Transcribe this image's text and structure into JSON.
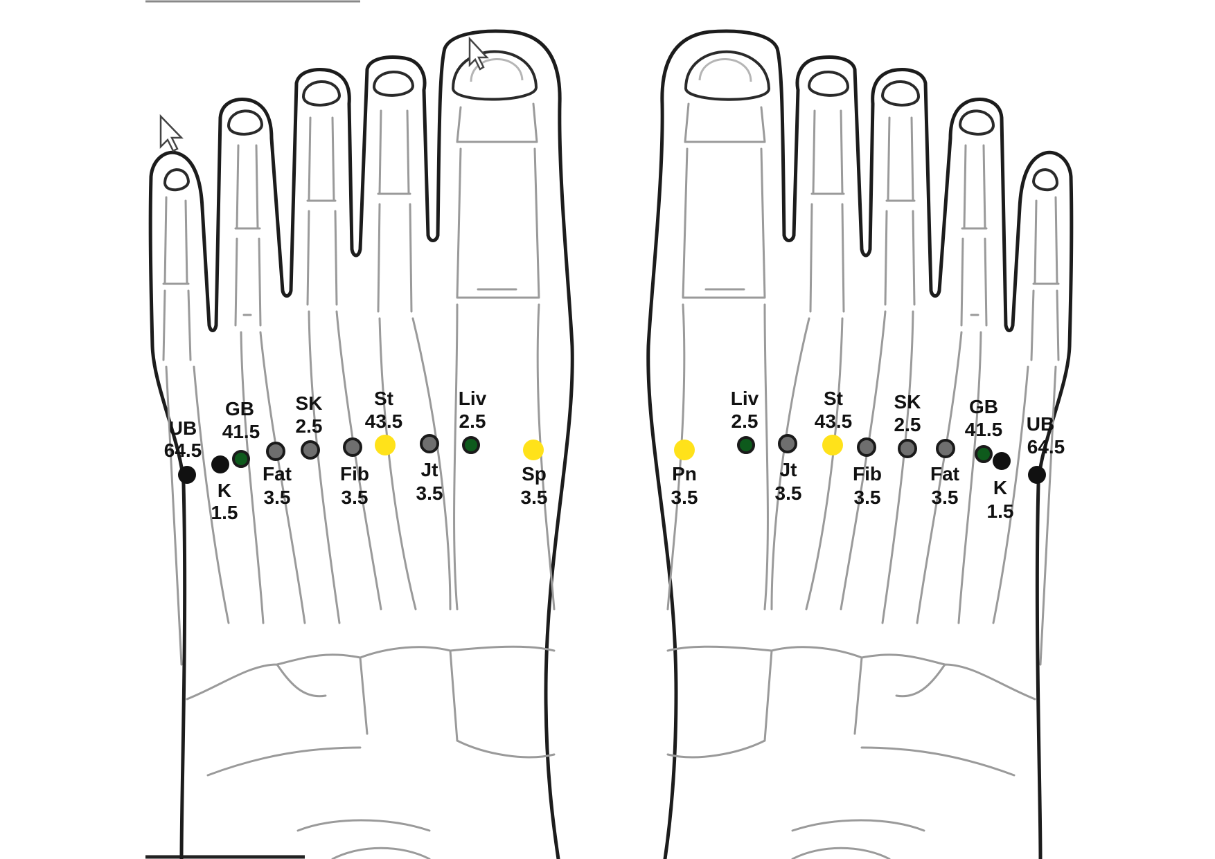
{
  "colors": {
    "black": "#111111",
    "gray": "#6f6f6f",
    "green": "#0e5a1c",
    "yellow": "#ffe21a",
    "outline": "#1c1c1c",
    "bone": "#9a9a9a"
  },
  "icons": [
    "cursor-arrow-icon",
    "cursor-arrow-icon"
  ],
  "left_foot": {
    "points": [
      {
        "id": "ub",
        "label": "UB",
        "value": "64.5",
        "color": "black"
      },
      {
        "id": "k",
        "label": "K",
        "value": "1.5",
        "color": "black"
      },
      {
        "id": "gb",
        "label": "GB",
        "value": "41.5",
        "color": "green"
      },
      {
        "id": "fat",
        "label": "Fat",
        "value": "3.5",
        "color": "gray"
      },
      {
        "id": "sk",
        "label": "SK",
        "value": "2.5",
        "color": "gray"
      },
      {
        "id": "fib",
        "label": "Fib",
        "value": "3.5",
        "color": "gray"
      },
      {
        "id": "st",
        "label": "St",
        "value": "43.5",
        "color": "yellow"
      },
      {
        "id": "jt",
        "label": "Jt",
        "value": "3.5",
        "color": "gray"
      },
      {
        "id": "liv",
        "label": "Liv",
        "value": "2.5",
        "color": "green"
      },
      {
        "id": "sp",
        "label": "Sp",
        "value": "3.5",
        "color": "yellow"
      }
    ]
  },
  "right_foot": {
    "points": [
      {
        "id": "pn",
        "label": "Pn",
        "value": "3.5",
        "color": "yellow"
      },
      {
        "id": "liv",
        "label": "Liv",
        "value": "2.5",
        "color": "green"
      },
      {
        "id": "jt",
        "label": "Jt",
        "value": "3.5",
        "color": "gray"
      },
      {
        "id": "st",
        "label": "St",
        "value": "43.5",
        "color": "yellow"
      },
      {
        "id": "fib",
        "label": "Fib",
        "value": "3.5",
        "color": "gray"
      },
      {
        "id": "sk",
        "label": "SK",
        "value": "2.5",
        "color": "gray"
      },
      {
        "id": "fat",
        "label": "Fat",
        "value": "3.5",
        "color": "gray"
      },
      {
        "id": "gb",
        "label": "GB",
        "value": "41.5",
        "color": "green"
      },
      {
        "id": "k",
        "label": "K",
        "value": "1.5",
        "color": "black"
      },
      {
        "id": "ub",
        "label": "UB",
        "value": "64.5",
        "color": "black"
      }
    ]
  }
}
